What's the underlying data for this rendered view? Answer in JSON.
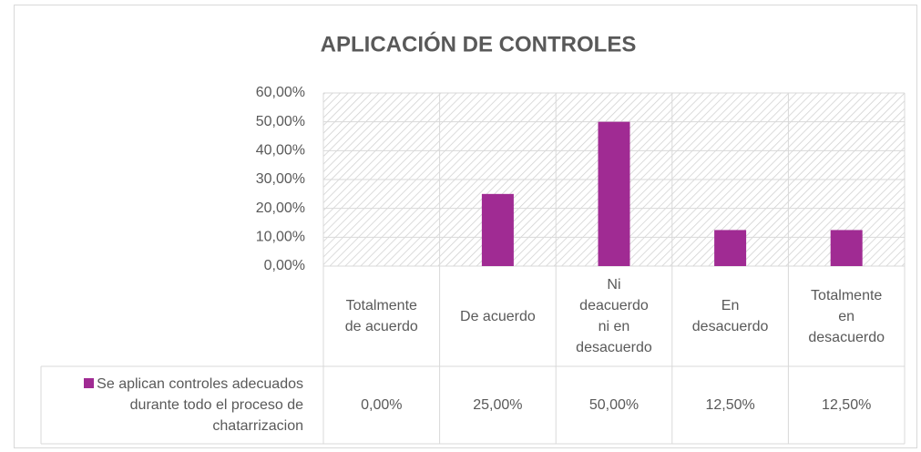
{
  "chart_data": {
    "type": "bar",
    "title": "APLICACIÓN DE CONTROLES",
    "categories": [
      "Totalmente de acuerdo",
      "De acuerdo",
      "Ni deacuerdo ni en desacuerdo",
      "En desacuerdo",
      "Totalmente en desacuerdo"
    ],
    "series": [
      {
        "name": "Se aplican controles adecuados durante todo el proceso de chatarrizacion",
        "color": "#a02b93",
        "values": [
          0,
          25,
          50,
          12.5,
          12.5
        ],
        "value_labels": [
          "0,00%",
          "25,00%",
          "50,00%",
          "12,50%",
          "12,50%"
        ]
      }
    ],
    "ylim": [
      0,
      60
    ],
    "yticks": [
      {
        "value": 0,
        "label": "0,00%"
      },
      {
        "value": 10,
        "label": "10,00%"
      },
      {
        "value": 20,
        "label": "20,00%"
      },
      {
        "value": 30,
        "label": "30,00%"
      },
      {
        "value": 40,
        "label": "40,00%"
      },
      {
        "value": 50,
        "label": "50,00%"
      },
      {
        "value": 60,
        "label": "60,00%"
      }
    ],
    "grid": true
  }
}
